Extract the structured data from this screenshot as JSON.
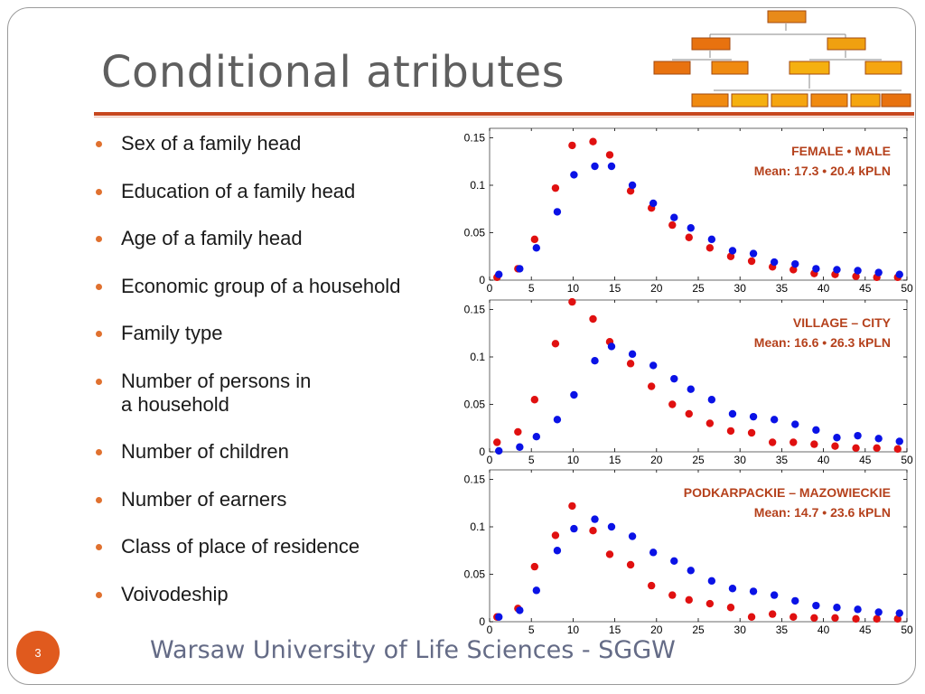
{
  "slide": {
    "title": "Conditional atributes",
    "page_number": "3",
    "footer": "Warsaw University of Life Sciences - SGGW"
  },
  "bullets": [
    "Sex of a family head",
    "Education of a family head",
    "Age of a family head",
    "Economic group of a household",
    "Family type",
    "Number of persons in\na household",
    "Number of children",
    "Number of earners",
    "Class of place of residence",
    "Voivodeship"
  ],
  "colors": {
    "accent": "#c7471e",
    "series_red": "#e01010",
    "series_blue": "#0a12e6",
    "annotation": "#b5411c"
  },
  "chart_data": [
    {
      "type": "scatter",
      "annotation_line1": "FEMALE  •  MALE",
      "annotation_line2": "Mean:  17.3  •  20.4  kPLN",
      "xlim": [
        0,
        50
      ],
      "ylim": [
        0,
        0.16
      ],
      "xticks": [
        0,
        5,
        10,
        15,
        20,
        25,
        30,
        35,
        40,
        45,
        50
      ],
      "yticks": [
        0,
        0.05,
        0.1,
        0.15
      ],
      "ytick_labels": [
        "0",
        "0.05",
        "0.1",
        "0.15"
      ],
      "x": [
        1,
        3.5,
        5.5,
        8,
        10,
        12.5,
        14.5,
        17,
        19.5,
        22,
        24,
        26.5,
        29,
        31.5,
        34,
        36.5,
        39,
        41.5,
        44,
        46.5,
        49
      ],
      "series": [
        {
          "color": "red",
          "values": [
            0.003,
            0.012,
            0.043,
            0.097,
            0.142,
            0.146,
            0.132,
            0.094,
            0.076,
            0.058,
            0.045,
            0.034,
            0.025,
            0.02,
            0.014,
            0.011,
            0.007,
            0.006,
            0.004,
            0.003,
            0.003
          ]
        },
        {
          "color": "blue",
          "values": [
            0.006,
            0.012,
            0.034,
            0.072,
            0.111,
            0.12,
            0.12,
            0.1,
            0.081,
            0.066,
            0.055,
            0.043,
            0.031,
            0.028,
            0.019,
            0.017,
            0.012,
            0.011,
            0.01,
            0.008,
            0.006
          ]
        }
      ]
    },
    {
      "type": "scatter",
      "annotation_line1": "VILLAGE – CITY",
      "annotation_line2": "Mean:  16.6  •  26.3  kPLN",
      "xlim": [
        0,
        50
      ],
      "ylim": [
        0,
        0.16
      ],
      "xticks": [
        0,
        5,
        10,
        15,
        20,
        25,
        30,
        35,
        40,
        45,
        50
      ],
      "yticks": [
        0,
        0.05,
        0.1,
        0.15
      ],
      "ytick_labels": [
        "0",
        "0.05",
        "0.1",
        "0.15"
      ],
      "x": [
        1,
        3.5,
        5.5,
        8,
        10,
        12.5,
        14.5,
        17,
        19.5,
        22,
        24,
        26.5,
        29,
        31.5,
        34,
        36.5,
        39,
        41.5,
        44,
        46.5,
        49
      ],
      "series": [
        {
          "color": "red",
          "values": [
            0.01,
            0.021,
            0.055,
            0.114,
            0.158,
            0.14,
            0.116,
            0.093,
            0.069,
            0.05,
            0.04,
            0.03,
            0.022,
            0.02,
            0.01,
            0.01,
            0.008,
            0.006,
            0.004,
            0.004,
            0.003
          ]
        },
        {
          "color": "blue",
          "values": [
            0.001,
            0.005,
            0.016,
            0.034,
            0.06,
            0.096,
            0.111,
            0.103,
            0.091,
            0.077,
            0.066,
            0.055,
            0.04,
            0.037,
            0.034,
            0.029,
            0.023,
            0.015,
            0.017,
            0.014,
            0.011
          ]
        }
      ]
    },
    {
      "type": "scatter",
      "annotation_line1": "PODKARPACKIE – MAZOWIECKIE",
      "annotation_line2": "Mean:  14.7  •  23.6  kPLN",
      "xlim": [
        0,
        50
      ],
      "ylim": [
        0,
        0.16
      ],
      "xticks": [
        0,
        5,
        10,
        15,
        20,
        25,
        30,
        35,
        40,
        45,
        50
      ],
      "yticks": [
        0,
        0.05,
        0.1,
        0.15
      ],
      "ytick_labels": [
        "0",
        "0.05",
        "0.1",
        "0.15"
      ],
      "x": [
        1,
        3.5,
        5.5,
        8,
        10,
        12.5,
        14.5,
        17,
        19.5,
        22,
        24,
        26.5,
        29,
        31.5,
        34,
        36.5,
        39,
        41.5,
        44,
        46.5,
        49
      ],
      "series": [
        {
          "color": "red",
          "values": [
            0.005,
            0.014,
            0.058,
            0.091,
            0.122,
            0.096,
            0.071,
            0.06,
            0.038,
            0.028,
            0.023,
            0.019,
            0.015,
            0.005,
            0.008,
            0.005,
            0.004,
            0.004,
            0.003,
            0.003,
            0.003
          ]
        },
        {
          "color": "blue",
          "values": [
            0.005,
            0.012,
            0.033,
            0.075,
            0.098,
            0.108,
            0.1,
            0.09,
            0.073,
            0.064,
            0.054,
            0.043,
            0.035,
            0.032,
            0.028,
            0.022,
            0.017,
            0.015,
            0.013,
            0.01,
            0.009
          ]
        }
      ]
    }
  ]
}
